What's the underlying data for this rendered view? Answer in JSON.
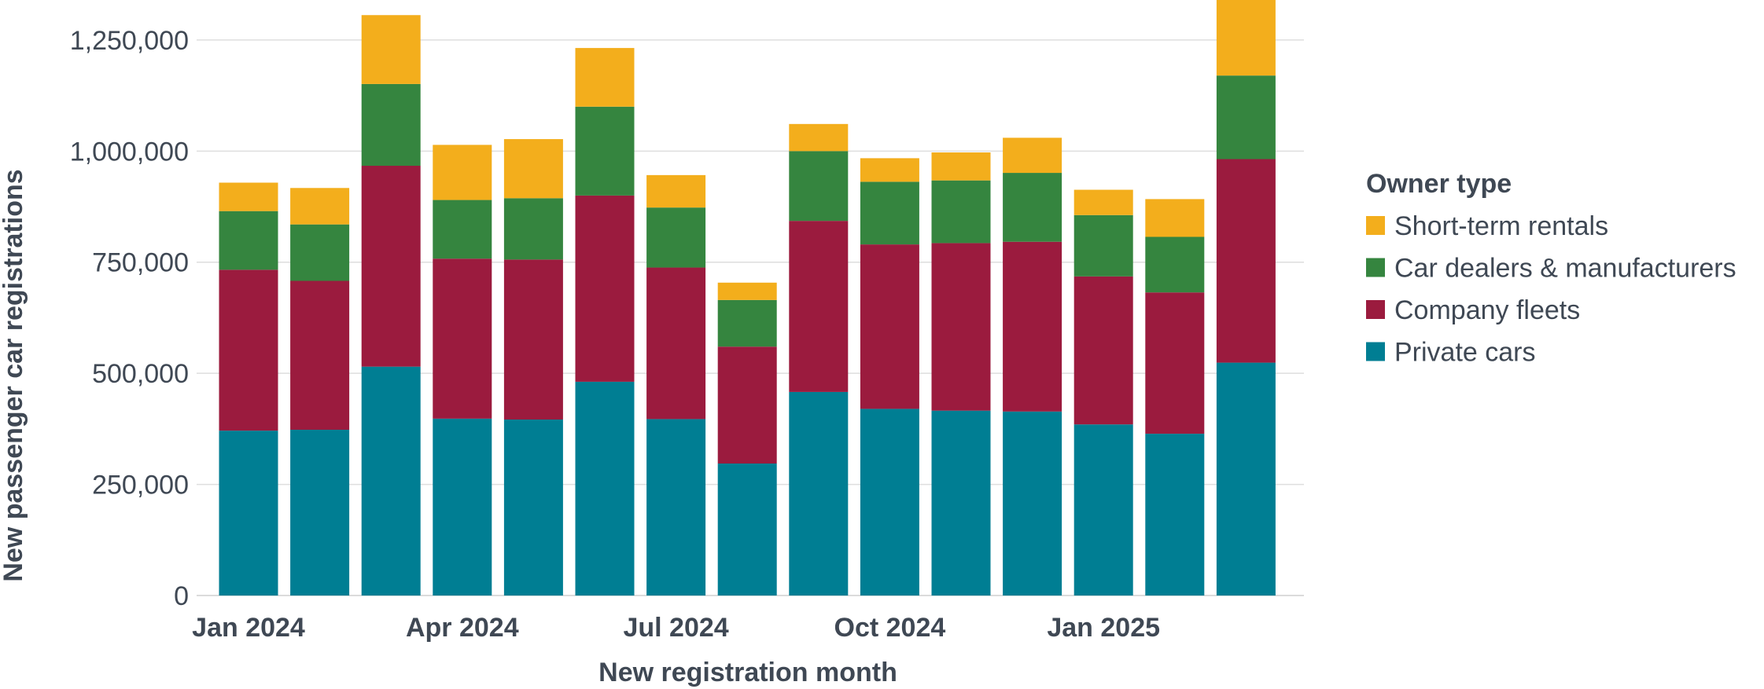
{
  "chart_data": {
    "type": "bar",
    "stacked": true,
    "title": "",
    "xlabel": "New registration month",
    "ylabel": "New passenger car registrations",
    "ylim": [
      0,
      1340000
    ],
    "yticks": [
      0,
      250000,
      500000,
      750000,
      1000000,
      1250000
    ],
    "ytick_labels": [
      "0",
      "250,000",
      "500,000",
      "750,000",
      "1,000,000",
      "1,250,000"
    ],
    "categories": [
      "Jan 2024",
      "Feb 2024",
      "Mar 2024",
      "Apr 2024",
      "May 2024",
      "Jun 2024",
      "Jul 2024",
      "Aug 2024",
      "Sep 2024",
      "Oct 2024",
      "Nov 2024",
      "Dec 2024",
      "Jan 2025",
      "Feb 2025",
      "Mar 2025"
    ],
    "xtick_labels": [
      {
        "category": "Jan 2024",
        "label": "Jan 2024"
      },
      {
        "category": "Apr 2024",
        "label": "Apr 2024"
      },
      {
        "category": "Jul 2024",
        "label": "Jul 2024"
      },
      {
        "category": "Oct 2024",
        "label": "Oct 2024"
      },
      {
        "category": "Jan 2025",
        "label": "Jan 2025"
      }
    ],
    "legend_title": "Owner type",
    "legend_position": "right",
    "series": [
      {
        "name": "Private cars",
        "color": "#007e93",
        "values": [
          371000,
          373000,
          515000,
          398000,
          396000,
          481000,
          397000,
          297000,
          458000,
          420000,
          416000,
          414000,
          385000,
          364000,
          524000
        ]
      },
      {
        "name": "Company fleets",
        "color": "#9b1b3e",
        "values": [
          362000,
          335000,
          452000,
          360000,
          360000,
          419000,
          341000,
          263000,
          385000,
          370000,
          377000,
          382000,
          333000,
          318000,
          458000
        ]
      },
      {
        "name": "Car dealers & manufacturers",
        "color": "#35853f",
        "values": [
          132000,
          127000,
          184000,
          132000,
          138000,
          200000,
          135000,
          105000,
          157000,
          141000,
          141000,
          155000,
          138000,
          125000,
          188000
        ]
      },
      {
        "name": "Short-term rentals",
        "color": "#f3ae1c",
        "values": [
          64000,
          82000,
          155000,
          124000,
          133000,
          132000,
          73000,
          39000,
          61000,
          53000,
          63000,
          79000,
          57000,
          85000,
          170000
        ]
      }
    ],
    "legend_order": [
      "Short-term rentals",
      "Car dealers & manufacturers",
      "Company fleets",
      "Private cars"
    ]
  }
}
